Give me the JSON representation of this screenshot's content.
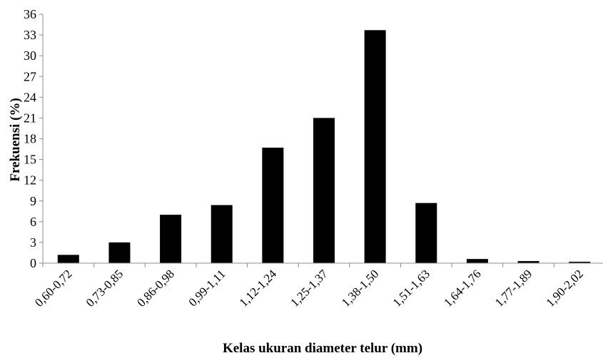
{
  "chart_data": {
    "type": "bar",
    "title": "",
    "xlabel": "Kelas ukuran diameter telur (mm)",
    "ylabel": "Frekuensi (%)",
    "ylim": [
      0,
      36
    ],
    "yticks": [
      0,
      3,
      6,
      9,
      12,
      15,
      18,
      21,
      24,
      27,
      30,
      33,
      36
    ],
    "grid": false,
    "legend": "none",
    "bar_color": "#000000",
    "categories": [
      "0,60-0,72",
      "0,73-0,85",
      "0,86-0,98",
      "0,99-1,11",
      "1,12-1,24",
      "1,25-1,37",
      "1,38-1,50",
      "1,51-1,63",
      "1,64-1,76",
      "1,77-1,89",
      "1,90-2,02"
    ],
    "values": [
      1.2,
      3.0,
      7.0,
      8.4,
      16.7,
      21.0,
      33.7,
      8.7,
      0.6,
      0.3,
      0.2
    ]
  }
}
